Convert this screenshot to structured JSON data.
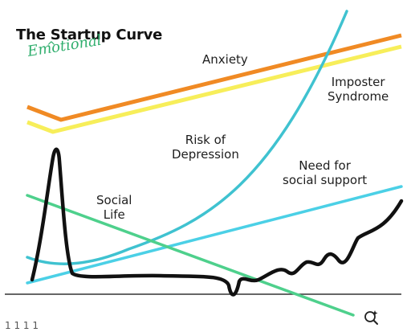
{
  "title": "The Startup Curve",
  "annotation": {
    "text": "Emotional",
    "caret": "^"
  },
  "labels": {
    "anxiety": "Anxiety",
    "imposter": [
      "Imposter",
      "Syndrome"
    ],
    "depression": [
      "Risk of",
      "Depression"
    ],
    "support": [
      "Need for",
      "social support"
    ],
    "social": [
      "Social",
      "Life"
    ]
  },
  "footer_text": "1 1 1 1",
  "colors": {
    "anxiety": "#f08a24",
    "imposter": "#f7ee5a",
    "depression": "#3fc2d0",
    "support": "#4bd0e6",
    "social_life": "#4ed08c",
    "startup_curve": "#111111",
    "baseline": "#333333",
    "annotation": "#2fae6d"
  },
  "icons": {
    "zoom": "zoom-sparkle-icon"
  }
}
